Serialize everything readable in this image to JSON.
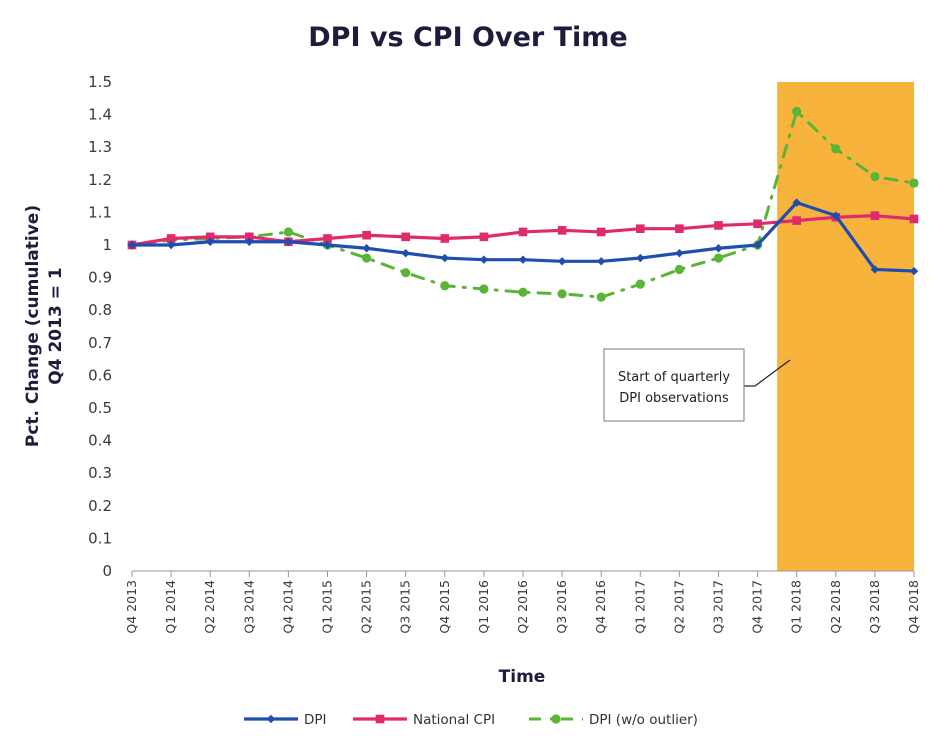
{
  "chart_data": {
    "type": "line",
    "title": "DPI vs CPI Over Time",
    "xlabel": "Time",
    "ylabel": [
      "Pct. Change (cumulative)",
      "Q4 2013 = 1"
    ],
    "ylim": [
      0,
      1.5
    ],
    "yticks": [
      "0",
      "0.1",
      "0.2",
      "0.3",
      "0.4",
      "0.5",
      "0.6",
      "0.7",
      "0.8",
      "0.9",
      "1",
      "1.1",
      "1.2",
      "1.3",
      "1.4",
      "1.5"
    ],
    "categories": [
      "Q4 2013",
      "Q1 2014",
      "Q2 2014",
      "Q3 2014",
      "Q4 2014",
      "Q1 2015",
      "Q2 2015",
      "Q3 2015",
      "Q4 2015",
      "Q1 2016",
      "Q2 2016",
      "Q3 2016",
      "Q4 2016",
      "Q1 2017",
      "Q2 2017",
      "Q3 2017",
      "Q4 2017",
      "Q1 2018",
      "Q2 2018",
      "Q3 2018",
      "Q4 2018"
    ],
    "series": [
      {
        "name": "DPI",
        "color": "#1f4eae",
        "marker": "diamond",
        "line": "solid",
        "values": [
          1.0,
          1.0,
          1.01,
          1.01,
          1.01,
          1.0,
          0.99,
          0.975,
          0.96,
          0.955,
          0.955,
          0.95,
          0.95,
          0.96,
          0.975,
          0.99,
          1.0,
          1.13,
          1.09,
          0.925,
          0.92
        ]
      },
      {
        "name": "National CPI",
        "color": "#df2a6e",
        "marker": "square",
        "line": "solid",
        "values": [
          1.0,
          1.02,
          1.025,
          1.025,
          1.01,
          1.02,
          1.03,
          1.025,
          1.02,
          1.025,
          1.04,
          1.045,
          1.04,
          1.05,
          1.05,
          1.06,
          1.065,
          1.075,
          1.085,
          1.09,
          1.08
        ]
      },
      {
        "name": "DPI (w/o outlier)",
        "color": "#5ab436",
        "marker": "circle",
        "line": "dashdot",
        "values": [
          1.0,
          1.015,
          1.02,
          1.025,
          1.04,
          1.0,
          0.96,
          0.915,
          0.875,
          0.865,
          0.855,
          0.85,
          0.84,
          0.88,
          0.925,
          0.96,
          1.0,
          1.41,
          1.295,
          1.21,
          1.19
        ]
      }
    ],
    "highlight": {
      "from": "Q4 2017",
      "to": "Q4 2018",
      "color": "#f8b33c"
    },
    "annotation": {
      "lines": [
        "Start of quarterly",
        "DPI observations"
      ]
    },
    "legend": "bottom",
    "grid": false
  }
}
